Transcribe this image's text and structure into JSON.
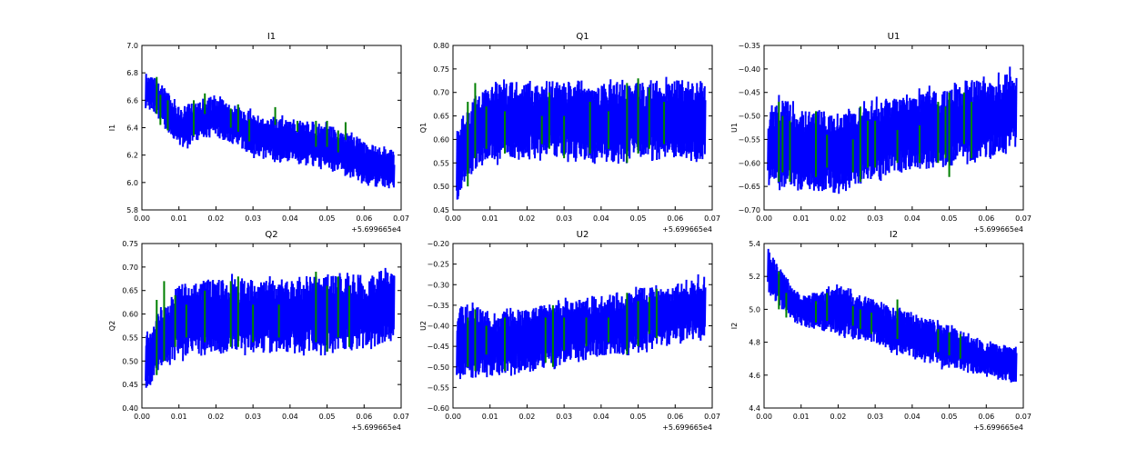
{
  "chart_data": [
    {
      "type": "line",
      "title": "I1",
      "ylabel": "I1",
      "xlim": [
        0,
        0.07
      ],
      "ylim": [
        5.8,
        7.0
      ],
      "x_offset_label": "+5.699665e4",
      "xticks": [
        "0.00",
        "0.01",
        "0.02",
        "0.03",
        "0.04",
        "0.05",
        "0.06",
        "0.07"
      ],
      "yticks": [
        "5.8",
        "6.0",
        "6.2",
        "6.4",
        "6.6",
        "6.8",
        "7.0"
      ],
      "series": [
        {
          "name": "blue",
          "color": "#0000ff",
          "x": [
            0.001,
            0.004,
            0.01,
            0.02,
            0.03,
            0.04,
            0.05,
            0.06,
            0.068
          ],
          "low": [
            6.55,
            6.5,
            6.25,
            6.35,
            6.2,
            6.15,
            6.1,
            6.0,
            5.95
          ],
          "high": [
            6.8,
            6.75,
            6.55,
            6.62,
            6.5,
            6.45,
            6.42,
            6.3,
            6.22
          ]
        },
        {
          "name": "green",
          "color": "#008000",
          "x": [
            0.004,
            0.005,
            0.007,
            0.014,
            0.017,
            0.024,
            0.026,
            0.029,
            0.036,
            0.042,
            0.047,
            0.05,
            0.053,
            0.055
          ],
          "low": [
            6.5,
            6.42,
            6.38,
            6.34,
            6.5,
            6.4,
            6.37,
            6.3,
            6.42,
            6.37,
            6.26,
            6.26,
            6.22,
            6.31
          ],
          "high": [
            6.77,
            6.64,
            6.6,
            6.6,
            6.65,
            6.54,
            6.57,
            6.46,
            6.55,
            6.45,
            6.45,
            6.45,
            6.38,
            6.44
          ]
        }
      ]
    },
    {
      "type": "line",
      "title": "Q1",
      "ylabel": "Q1",
      "xlim": [
        0,
        0.07
      ],
      "ylim": [
        0.45,
        0.8
      ],
      "x_offset_label": "+5.699665e4",
      "xticks": [
        "0.00",
        "0.01",
        "0.02",
        "0.03",
        "0.04",
        "0.05",
        "0.06",
        "0.07"
      ],
      "yticks": [
        "0.45",
        "0.50",
        "0.55",
        "0.60",
        "0.65",
        "0.70",
        "0.75",
        "0.80"
      ],
      "series": [
        {
          "name": "blue",
          "color": "#0000ff",
          "x": [
            0.001,
            0.004,
            0.01,
            0.02,
            0.03,
            0.04,
            0.05,
            0.06,
            0.068
          ],
          "low": [
            0.47,
            0.52,
            0.56,
            0.56,
            0.56,
            0.56,
            0.56,
            0.56,
            0.56
          ],
          "high": [
            0.62,
            0.67,
            0.72,
            0.72,
            0.72,
            0.72,
            0.72,
            0.72,
            0.72
          ]
        },
        {
          "name": "green",
          "color": "#008000",
          "x": [
            0.004,
            0.006,
            0.009,
            0.014,
            0.024,
            0.026,
            0.03,
            0.037,
            0.042,
            0.047,
            0.05,
            0.053,
            0.057
          ],
          "low": [
            0.5,
            0.56,
            0.58,
            0.57,
            0.59,
            0.58,
            0.56,
            0.57,
            0.58,
            0.55,
            0.57,
            0.58,
            0.59
          ],
          "high": [
            0.68,
            0.72,
            0.67,
            0.66,
            0.65,
            0.7,
            0.65,
            0.68,
            0.66,
            0.72,
            0.73,
            0.71,
            0.68
          ]
        }
      ]
    },
    {
      "type": "line",
      "title": "U1",
      "ylabel": "U1",
      "xlim": [
        0,
        0.07
      ],
      "ylim": [
        -0.7,
        -0.35
      ],
      "x_offset_label": "+5.699665e4",
      "xticks": [
        "0.00",
        "0.01",
        "0.02",
        "0.03",
        "0.04",
        "0.05",
        "0.06",
        "0.07"
      ],
      "yticks": [
        "−0.70",
        "−0.65",
        "−0.60",
        "−0.55",
        "−0.50",
        "−0.45",
        "−0.40",
        "−0.35"
      ],
      "series": [
        {
          "name": "blue",
          "color": "#0000ff",
          "x": [
            0.001,
            0.004,
            0.01,
            0.02,
            0.03,
            0.04,
            0.05,
            0.06,
            0.068
          ],
          "low": [
            -0.65,
            -0.64,
            -0.66,
            -0.66,
            -0.63,
            -0.61,
            -0.6,
            -0.59,
            -0.57
          ],
          "high": [
            -0.5,
            -0.46,
            -0.49,
            -0.5,
            -0.47,
            -0.45,
            -0.44,
            -0.42,
            -0.41
          ]
        },
        {
          "name": "green",
          "color": "#008000",
          "x": [
            0.004,
            0.005,
            0.007,
            0.014,
            0.017,
            0.024,
            0.026,
            0.028,
            0.03,
            0.036,
            0.042,
            0.047,
            0.049,
            0.05,
            0.054,
            0.056
          ],
          "low": [
            -0.64,
            -0.62,
            -0.64,
            -0.63,
            -0.61,
            -0.62,
            -0.64,
            -0.61,
            -0.61,
            -0.6,
            -0.6,
            -0.6,
            -0.59,
            -0.63,
            -0.56,
            -0.59
          ],
          "high": [
            -0.47,
            -0.5,
            -0.51,
            -0.49,
            -0.54,
            -0.55,
            -0.48,
            -0.51,
            -0.51,
            -0.53,
            -0.52,
            -0.47,
            -0.48,
            -0.45,
            -0.45,
            -0.47
          ]
        }
      ]
    },
    {
      "type": "line",
      "title": "Q2",
      "ylabel": "Q2",
      "xlim": [
        0,
        0.07
      ],
      "ylim": [
        0.4,
        0.75
      ],
      "x_offset_label": "+5.699665e4",
      "xticks": [
        "0.00",
        "0.01",
        "0.02",
        "0.03",
        "0.04",
        "0.05",
        "0.06",
        "0.07"
      ],
      "yticks": [
        "0.40",
        "0.45",
        "0.50",
        "0.55",
        "0.60",
        "0.65",
        "0.70",
        "0.75"
      ],
      "series": [
        {
          "name": "blue",
          "color": "#0000ff",
          "x": [
            0.001,
            0.004,
            0.01,
            0.02,
            0.03,
            0.04,
            0.05,
            0.06,
            0.068
          ],
          "low": [
            0.43,
            0.48,
            0.51,
            0.52,
            0.52,
            0.52,
            0.52,
            0.53,
            0.54
          ],
          "high": [
            0.55,
            0.6,
            0.66,
            0.67,
            0.67,
            0.67,
            0.68,
            0.68,
            0.69
          ]
        },
        {
          "name": "green",
          "color": "#008000",
          "x": [
            0.004,
            0.006,
            0.009,
            0.012,
            0.017,
            0.024,
            0.026,
            0.03,
            0.037,
            0.047,
            0.05,
            0.053,
            0.056
          ],
          "low": [
            0.47,
            0.5,
            0.53,
            0.55,
            0.54,
            0.53,
            0.53,
            0.54,
            0.55,
            0.54,
            0.52,
            0.55,
            0.53
          ],
          "high": [
            0.63,
            0.67,
            0.64,
            0.62,
            0.65,
            0.67,
            0.68,
            0.62,
            0.62,
            0.69,
            0.66,
            0.68,
            0.66
          ]
        }
      ]
    },
    {
      "type": "line",
      "title": "U2",
      "ylabel": "U2",
      "xlim": [
        0,
        0.07
      ],
      "ylim": [
        -0.6,
        -0.2
      ],
      "x_offset_label": "+5.699665e4",
      "xticks": [
        "0.00",
        "0.01",
        "0.02",
        "0.03",
        "0.04",
        "0.05",
        "0.06",
        "0.07"
      ],
      "yticks": [
        "−0.60",
        "−0.55",
        "−0.50",
        "−0.45",
        "−0.40",
        "−0.35",
        "−0.30",
        "−0.25",
        "−0.20"
      ],
      "series": [
        {
          "name": "blue",
          "color": "#0000ff",
          "x": [
            0.001,
            0.004,
            0.01,
            0.02,
            0.03,
            0.04,
            0.05,
            0.06,
            0.068
          ],
          "low": [
            -0.53,
            -0.52,
            -0.52,
            -0.51,
            -0.49,
            -0.47,
            -0.46,
            -0.44,
            -0.43
          ],
          "high": [
            -0.36,
            -0.35,
            -0.37,
            -0.36,
            -0.34,
            -0.33,
            -0.31,
            -0.3,
            -0.28
          ]
        },
        {
          "name": "green",
          "color": "#008000",
          "x": [
            0.004,
            0.006,
            0.009,
            0.014,
            0.025,
            0.027,
            0.03,
            0.036,
            0.042,
            0.047,
            0.05,
            0.053,
            0.055
          ],
          "low": [
            -0.5,
            -0.51,
            -0.47,
            -0.51,
            -0.49,
            -0.5,
            -0.46,
            -0.45,
            -0.44,
            -0.47,
            -0.45,
            -0.42,
            -0.43
          ],
          "high": [
            -0.38,
            -0.36,
            -0.4,
            -0.38,
            -0.38,
            -0.35,
            -0.38,
            -0.38,
            -0.38,
            -0.32,
            -0.34,
            -0.33,
            -0.31
          ]
        }
      ]
    },
    {
      "type": "line",
      "title": "I2",
      "ylabel": "I2",
      "xlim": [
        0,
        0.07
      ],
      "ylim": [
        4.4,
        5.4
      ],
      "x_offset_label": "+5.699665e4",
      "xticks": [
        "0.00",
        "0.01",
        "0.02",
        "0.03",
        "0.04",
        "0.05",
        "0.06",
        "0.07"
      ],
      "yticks": [
        "4.4",
        "4.6",
        "4.8",
        "5.0",
        "5.2",
        "5.4"
      ],
      "series": [
        {
          "name": "blue",
          "color": "#0000ff",
          "x": [
            0.001,
            0.004,
            0.01,
            0.02,
            0.03,
            0.04,
            0.05,
            0.06,
            0.068
          ],
          "low": [
            5.1,
            5.02,
            4.9,
            4.85,
            4.8,
            4.7,
            4.65,
            4.6,
            4.55
          ],
          "high": [
            5.38,
            5.25,
            5.07,
            5.15,
            5.05,
            4.97,
            4.9,
            4.8,
            4.76
          ]
        },
        {
          "name": "green",
          "color": "#008000",
          "x": [
            0.004,
            0.006,
            0.014,
            0.017,
            0.024,
            0.026,
            0.029,
            0.036,
            0.047,
            0.05,
            0.053
          ],
          "low": [
            5.0,
            4.95,
            4.92,
            4.93,
            4.9,
            4.88,
            4.85,
            4.82,
            4.74,
            4.72,
            4.7
          ],
          "high": [
            5.23,
            5.1,
            5.05,
            5.1,
            5.02,
            5.0,
            4.98,
            5.06,
            4.88,
            4.86,
            4.85
          ]
        }
      ]
    }
  ]
}
